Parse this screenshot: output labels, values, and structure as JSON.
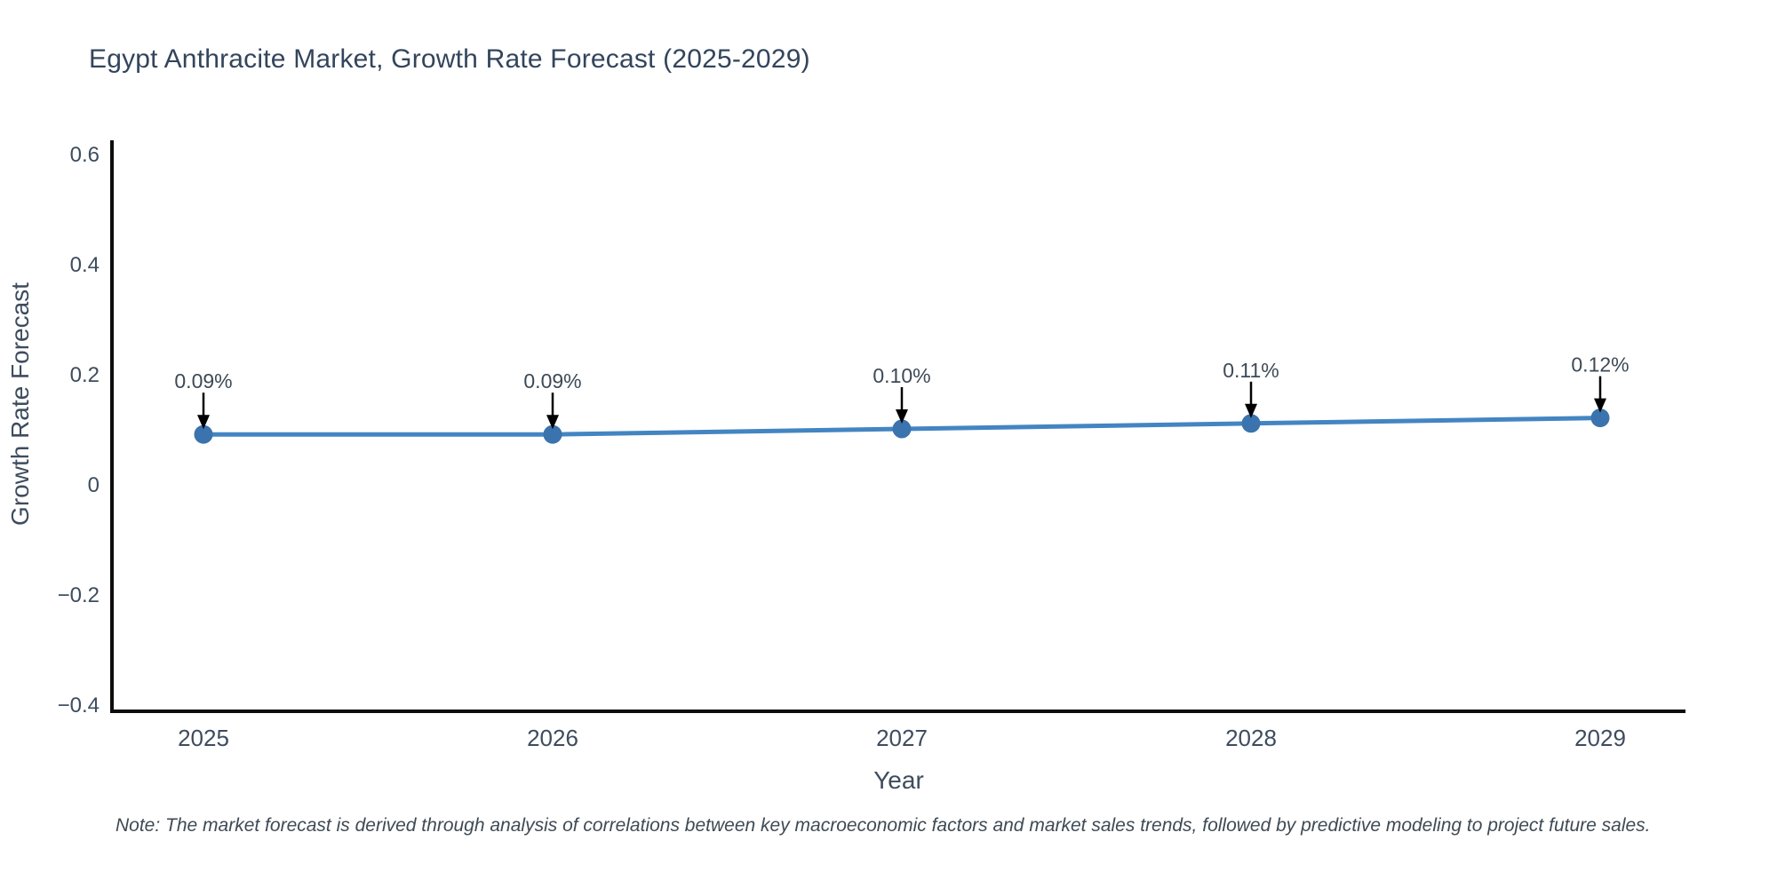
{
  "title": "Egypt Anthracite Market, Growth Rate Forecast (2025-2029)",
  "note": "Note: The market forecast is derived through analysis of correlations between key macroeconomic factors and market sales trends, followed by predictive modeling to project future sales.",
  "chart_data": {
    "type": "line",
    "title": "Egypt Anthracite Market, Growth Rate Forecast (2025-2029)",
    "x": [
      2025,
      2026,
      2027,
      2028,
      2029
    ],
    "categories": [
      "2025",
      "2026",
      "2027",
      "2028",
      "2029"
    ],
    "values": [
      0.09,
      0.09,
      0.1,
      0.11,
      0.12
    ],
    "point_labels": [
      "0.09%",
      "0.09%",
      "0.10%",
      "0.11%",
      "0.12%"
    ],
    "xlabel": "Year",
    "ylabel": "Growth Rate Forecast",
    "ylim": [
      -0.413,
      0.624
    ],
    "yticks": [
      0.6,
      0.4,
      0.2,
      0,
      -0.2,
      -0.4
    ],
    "ytick_labels": [
      "0.6",
      "0.4",
      "0.2",
      "0",
      "−0.2",
      "−0.4"
    ],
    "grid": false,
    "legend": "none",
    "annotations_have_arrows": true,
    "colors": {
      "line": "#4385c2",
      "marker": "#3a73ad",
      "axis_line": "#0d0d0d",
      "tick_text": "#3e4c5e",
      "axis_title_text": "#3e4c5e",
      "annotation_text": "#3d4a56",
      "arrow": "#000000",
      "title_text": "#33455c",
      "background": "#ffffff"
    }
  }
}
